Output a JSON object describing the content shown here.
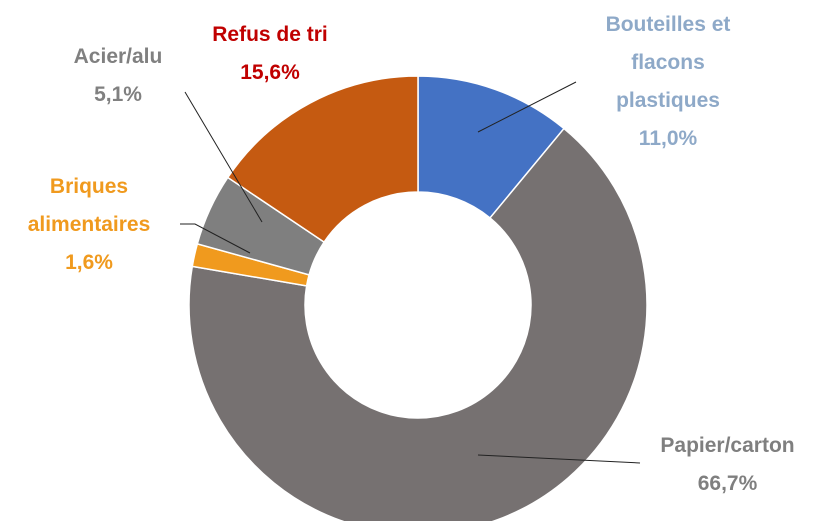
{
  "chart_data": {
    "type": "donut",
    "categories": [
      "Bouteilles et flacons plastiques",
      "Papier/carton",
      "Briques alimentaires",
      "Acier/alu",
      "Refus de tri"
    ],
    "values": [
      11.0,
      66.7,
      1.6,
      5.1,
      15.6
    ],
    "value_labels": [
      "11,0%",
      "66,7%",
      "1,6%",
      "5,1%",
      "15,6%"
    ],
    "colors": [
      "#4472C4",
      "#767171",
      "#F09A1E",
      "#7F7F7F",
      "#C55A11"
    ],
    "label_colors": [
      "#8EA9C8",
      "#7F7F7F",
      "#F09A1E",
      "#808080",
      "#C00000"
    ]
  }
}
